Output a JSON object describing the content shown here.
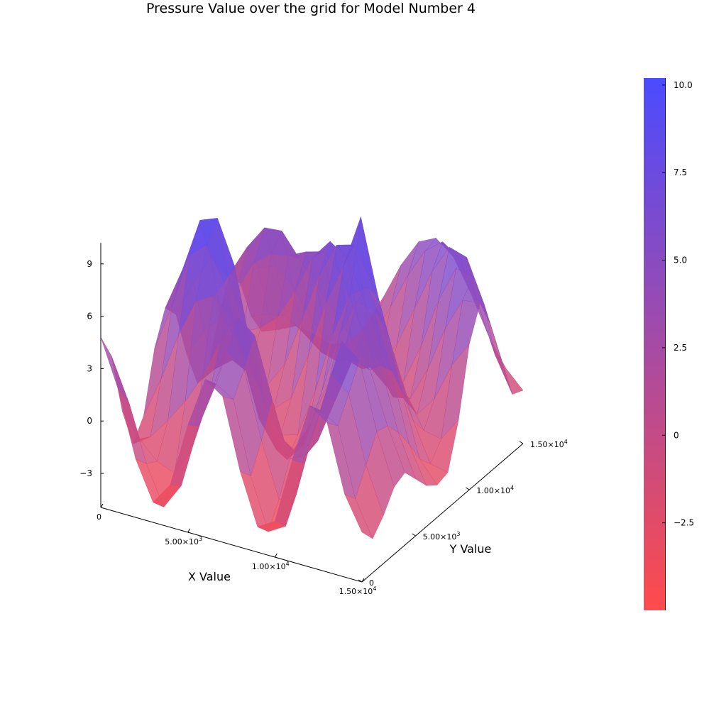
{
  "chart_data": {
    "type": "surface",
    "title": "Pressure Value over the grid for Model Number 4",
    "xlabel": "X Value",
    "ylabel": "Y Value",
    "zlabel": "",
    "xlim": [
      0,
      15000
    ],
    "ylim": [
      0,
      15000
    ],
    "zlim": [
      -5,
      10.2
    ],
    "x_ticks": [
      {
        "value": 0,
        "mantissa": "0",
        "exponent": ""
      },
      {
        "value": 5000,
        "mantissa": "5.00×10",
        "exponent": "3"
      },
      {
        "value": 10000,
        "mantissa": "1.00×10",
        "exponent": "4"
      },
      {
        "value": 15000,
        "mantissa": "1.50×10",
        "exponent": "4"
      }
    ],
    "y_ticks": [
      {
        "value": 0,
        "mantissa": "0",
        "exponent": ""
      },
      {
        "value": 5000,
        "mantissa": "5.00×10",
        "exponent": "3"
      },
      {
        "value": 10000,
        "mantissa": "1.00×10",
        "exponent": "4"
      },
      {
        "value": 15000,
        "mantissa": "1.50×10",
        "exponent": "4"
      }
    ],
    "z_ticks": [
      {
        "value": -3,
        "label": "−3"
      },
      {
        "value": 0,
        "label": "0"
      },
      {
        "value": 3,
        "label": "3"
      },
      {
        "value": 6,
        "label": "6"
      },
      {
        "value": 9,
        "label": "9"
      }
    ],
    "colorbar": {
      "min": -5,
      "max": 10.2,
      "ticks": [
        {
          "value": -2.5,
          "label": "−2.5"
        },
        {
          "value": 0,
          "label": "0"
        },
        {
          "value": 2.5,
          "label": "2.5"
        },
        {
          "value": 5,
          "label": "5.0"
        },
        {
          "value": 7.5,
          "label": "7.5"
        },
        {
          "value": 10,
          "label": "10.0"
        }
      ],
      "low_color": "#ff4b4b",
      "high_color": "#4b4bff"
    },
    "grid_x": [
      0,
      1000,
      2000,
      3000,
      4000,
      5000,
      6000,
      7000,
      8000,
      9000,
      10000,
      11000,
      12000,
      13000,
      14000,
      15000
    ],
    "grid_y": [
      0,
      1000,
      2000,
      3000,
      4000,
      5000,
      6000,
      7000,
      8000,
      9000,
      10000,
      11000,
      12000,
      13000,
      14000,
      15000
    ],
    "z": [
      [
        4.8,
        2.1,
        -1.6,
        -3.8,
        -2.5,
        1.2,
        4.1,
        3.4,
        -0.6,
        -3.5,
        -2.9,
        0.9,
        4.3,
        3.6,
        -0.2,
        -2.1
      ],
      [
        3.2,
        0.8,
        -2.4,
        -4.6,
        -3.1,
        0.6,
        3.3,
        2.7,
        -1.4,
        -4.3,
        -3.7,
        0.2,
        3.5,
        2.9,
        -1.0,
        -3.0
      ],
      [
        -0.5,
        -1.8,
        -2.8,
        -3.2,
        -1.5,
        1.8,
        4.6,
        3.9,
        0.1,
        -3.0,
        -2.4,
        1.5,
        5.0,
        4.2,
        0.4,
        -2.2
      ],
      [
        -2.9,
        -2.2,
        -1.0,
        0.4,
        2.1,
        4.4,
        6.1,
        5.3,
        1.9,
        -1.2,
        -0.6,
        2.9,
        6.4,
        5.6,
        1.8,
        -1.1
      ],
      [
        -1.8,
        0.6,
        3.4,
        5.6,
        6.2,
        5.1,
        2.9,
        0.8,
        -0.9,
        -1.6,
        -0.4,
        2.2,
        4.8,
        4.5,
        1.6,
        -0.8
      ],
      [
        1.5,
        4.2,
        7.4,
        8.3,
        6.4,
        2.6,
        -0.8,
        -2.3,
        -2.0,
        -0.2,
        2.4,
        4.9,
        6.1,
        4.2,
        0.7,
        -1.7
      ],
      [
        3.3,
        5.8,
        8.9,
        9.3,
        6.8,
        2.1,
        -1.9,
        -3.4,
        -2.2,
        1.1,
        4.6,
        6.8,
        6.6,
        3.4,
        -0.5,
        -2.6
      ],
      [
        2.4,
        4.5,
        6.2,
        5.4,
        2.7,
        -0.6,
        -2.8,
        -2.5,
        0.3,
        3.8,
        6.4,
        7.1,
        5.1,
        1.6,
        -1.9,
        -3.1
      ],
      [
        -0.4,
        1.2,
        2.3,
        1.1,
        -0.9,
        -2.1,
        -1.2,
        1.6,
        4.8,
        7.2,
        10.3,
        6.0,
        2.6,
        -0.5,
        -2.7,
        -2.9
      ],
      [
        -2.6,
        -1.5,
        -0.7,
        -1.2,
        -1.6,
        -0.1,
        2.7,
        5.6,
        7.6,
        7.9,
        6.1,
        3.1,
        0.2,
        -1.6,
        -1.8,
        -0.4
      ],
      [
        -2.3,
        -1.1,
        0.4,
        0.9,
        1.8,
        3.6,
        5.8,
        7.0,
        6.3,
        4.1,
        1.5,
        -0.6,
        -1.5,
        -0.3,
        1.9,
        3.4
      ],
      [
        0.2,
        1.9,
        3.8,
        4.6,
        4.8,
        5.3,
        5.6,
        4.6,
        2.3,
        -0.1,
        -1.6,
        -1.4,
        0.6,
        3.2,
        5.1,
        5.2
      ],
      [
        2.1,
        3.9,
        5.3,
        5.4,
        4.1,
        2.8,
        1.6,
        0.4,
        -0.9,
        -1.8,
        -1.2,
        1.1,
        4.0,
        6.1,
        5.9,
        3.4
      ],
      [
        1.0,
        2.2,
        2.6,
        1.7,
        0.2,
        -0.9,
        -1.6,
        -1.9,
        -1.4,
        0.1,
        2.4,
        4.8,
        6.5,
        6.2,
        3.8,
        0.9
      ],
      [
        -1.4,
        -1.0,
        -0.8,
        -1.5,
        -2.3,
        -2.6,
        -2.0,
        -0.6,
        1.4,
        3.5,
        5.2,
        6.0,
        5.3,
        3.1,
        0.4,
        -1.6
      ],
      [
        -2.8,
        -2.4,
        -1.9,
        -2.1,
        -2.4,
        -2.0,
        -0.7,
        1.2,
        3.3,
        4.9,
        5.4,
        4.6,
        2.8,
        0.7,
        -0.9,
        -1.9
      ]
    ]
  }
}
